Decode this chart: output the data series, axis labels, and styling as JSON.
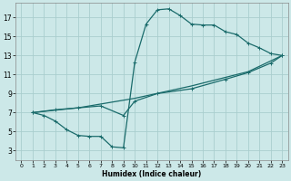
{
  "xlabel": "Humidex (Indice chaleur)",
  "bg_color": "#cce8e8",
  "grid_color": "#aacece",
  "line_color": "#1a6b6b",
  "xlim": [
    -0.5,
    23.5
  ],
  "ylim": [
    2,
    18.5
  ],
  "xticks": [
    0,
    1,
    2,
    3,
    4,
    5,
    6,
    7,
    8,
    9,
    10,
    11,
    12,
    13,
    14,
    15,
    16,
    17,
    18,
    19,
    20,
    21,
    22,
    23
  ],
  "yticks": [
    3,
    5,
    7,
    9,
    11,
    13,
    15,
    17
  ],
  "upper_line": [
    [
      1,
      7.0
    ],
    [
      2,
      6.7
    ],
    [
      3,
      6.1
    ],
    [
      4,
      5.2
    ],
    [
      5,
      4.6
    ],
    [
      6,
      4.5
    ],
    [
      7,
      4.5
    ],
    [
      8,
      3.4
    ],
    [
      9,
      3.3
    ],
    [
      10,
      12.3
    ],
    [
      11,
      16.3
    ],
    [
      12,
      17.8
    ],
    [
      13,
      17.9
    ],
    [
      14,
      17.2
    ],
    [
      15,
      16.3
    ],
    [
      16,
      16.2
    ],
    [
      17,
      16.2
    ],
    [
      18,
      15.5
    ],
    [
      19,
      15.2
    ],
    [
      20,
      14.3
    ],
    [
      21,
      13.8
    ],
    [
      22,
      13.2
    ],
    [
      23,
      13.0
    ]
  ],
  "lower_line": [
    [
      1,
      7.0
    ],
    [
      3,
      7.3
    ],
    [
      5,
      7.5
    ],
    [
      7,
      7.7
    ],
    [
      9,
      6.7
    ],
    [
      10,
      8.2
    ],
    [
      12,
      9.0
    ],
    [
      15,
      9.5
    ],
    [
      18,
      10.5
    ],
    [
      20,
      11.2
    ],
    [
      22,
      12.2
    ],
    [
      23,
      13.0
    ]
  ],
  "mid_line": [
    [
      1,
      7.0
    ],
    [
      5,
      7.5
    ],
    [
      10,
      8.5
    ],
    [
      15,
      9.8
    ],
    [
      20,
      11.3
    ],
    [
      23,
      13.0
    ]
  ]
}
